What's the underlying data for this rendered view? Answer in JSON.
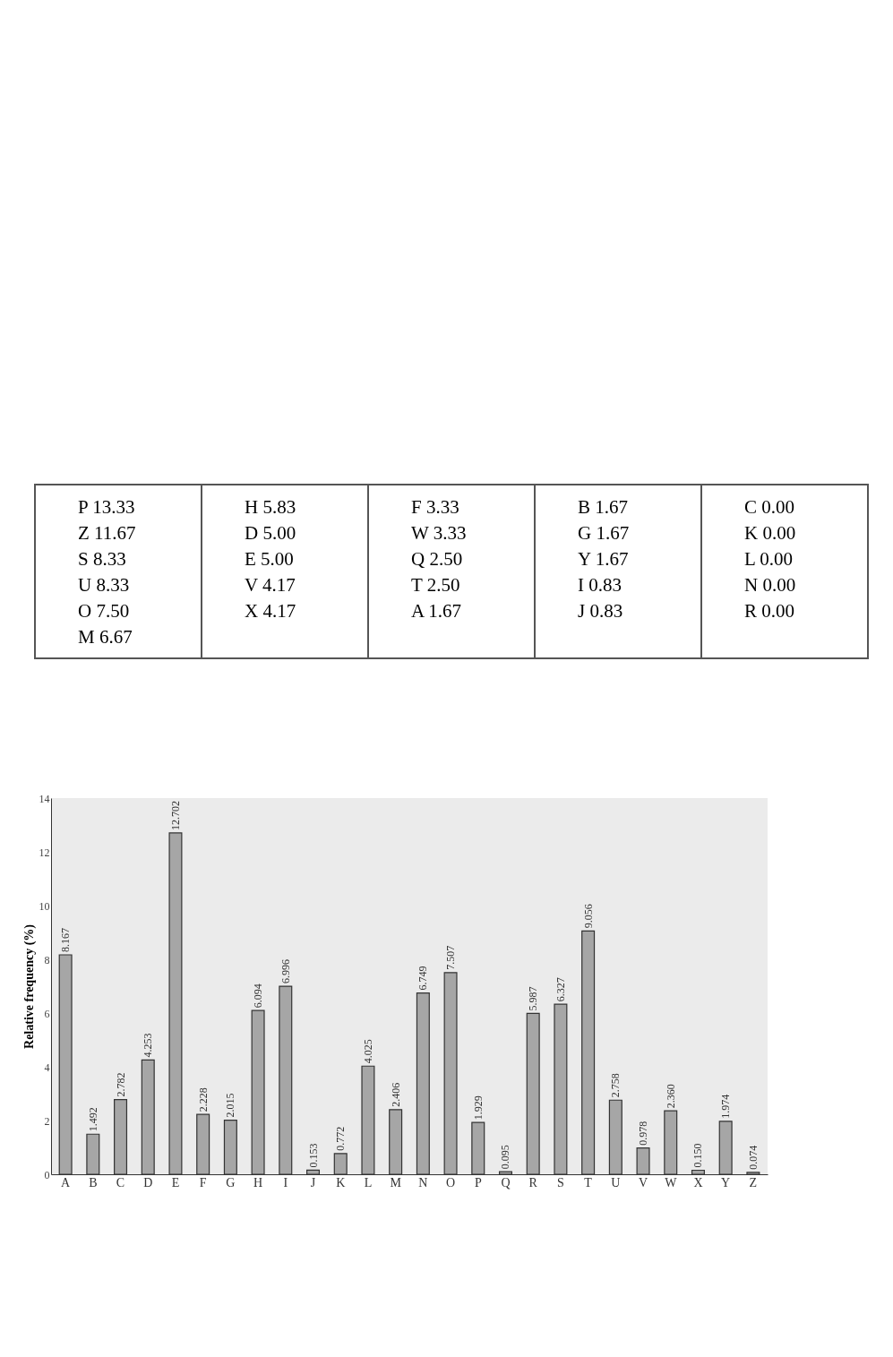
{
  "chart_data": [
    {
      "type": "other",
      "annotations": [
        "P 13.33",
        "Z 11.67",
        "S 8.33",
        "U 8.33",
        "O 7.50",
        "M 6.67",
        "H 5.83",
        "D 5.00",
        "E 5.00",
        "V 4.17",
        "X 4.17",
        "F 3.33",
        "W 3.33",
        "Q 2.50",
        "T 2.50",
        "A 1.67",
        "B 1.67",
        "G 1.67",
        "Y 1.67",
        "I 0.83",
        "J 0.83",
        "C 0.00",
        "K 0.00",
        "L 0.00",
        "N 0.00",
        "R 0.00"
      ]
    },
    {
      "type": "bar",
      "ylabel": "Relative frequency (%)",
      "categories": [
        "A",
        "B",
        "C",
        "D",
        "E",
        "F",
        "G",
        "H",
        "I",
        "J",
        "K",
        "L",
        "M",
        "N",
        "O",
        "P",
        "Q",
        "R",
        "S",
        "T",
        "U",
        "V",
        "W",
        "X",
        "Y",
        "Z"
      ],
      "values": [
        8.167,
        1.492,
        2.782,
        4.253,
        12.702,
        2.228,
        2.015,
        6.094,
        6.996,
        0.153,
        0.772,
        4.025,
        2.406,
        6.749,
        7.507,
        1.929,
        0.095,
        5.987,
        6.327,
        9.056,
        2.758,
        0.978,
        2.36,
        0.15,
        1.974,
        0.074
      ],
      "value_labels": [
        "8.167",
        "1.492",
        "2.782",
        "4.253",
        "12.702",
        "2.228",
        "2.015",
        "6.094",
        "6.996",
        "0.153",
        "0.772",
        "4.025",
        "2.406",
        "6.749",
        "7.507",
        "1.929",
        "0.095",
        "5.987",
        "6.327",
        "9.056",
        "2.758",
        "0.978",
        "2.360",
        "0.150",
        "1.974",
        "0.074"
      ],
      "color": "#a6a6a6",
      "ylim": [
        0,
        14
      ],
      "yticks": [
        0,
        2,
        4,
        6,
        8,
        10,
        12,
        14
      ],
      "grid": false
    }
  ]
}
